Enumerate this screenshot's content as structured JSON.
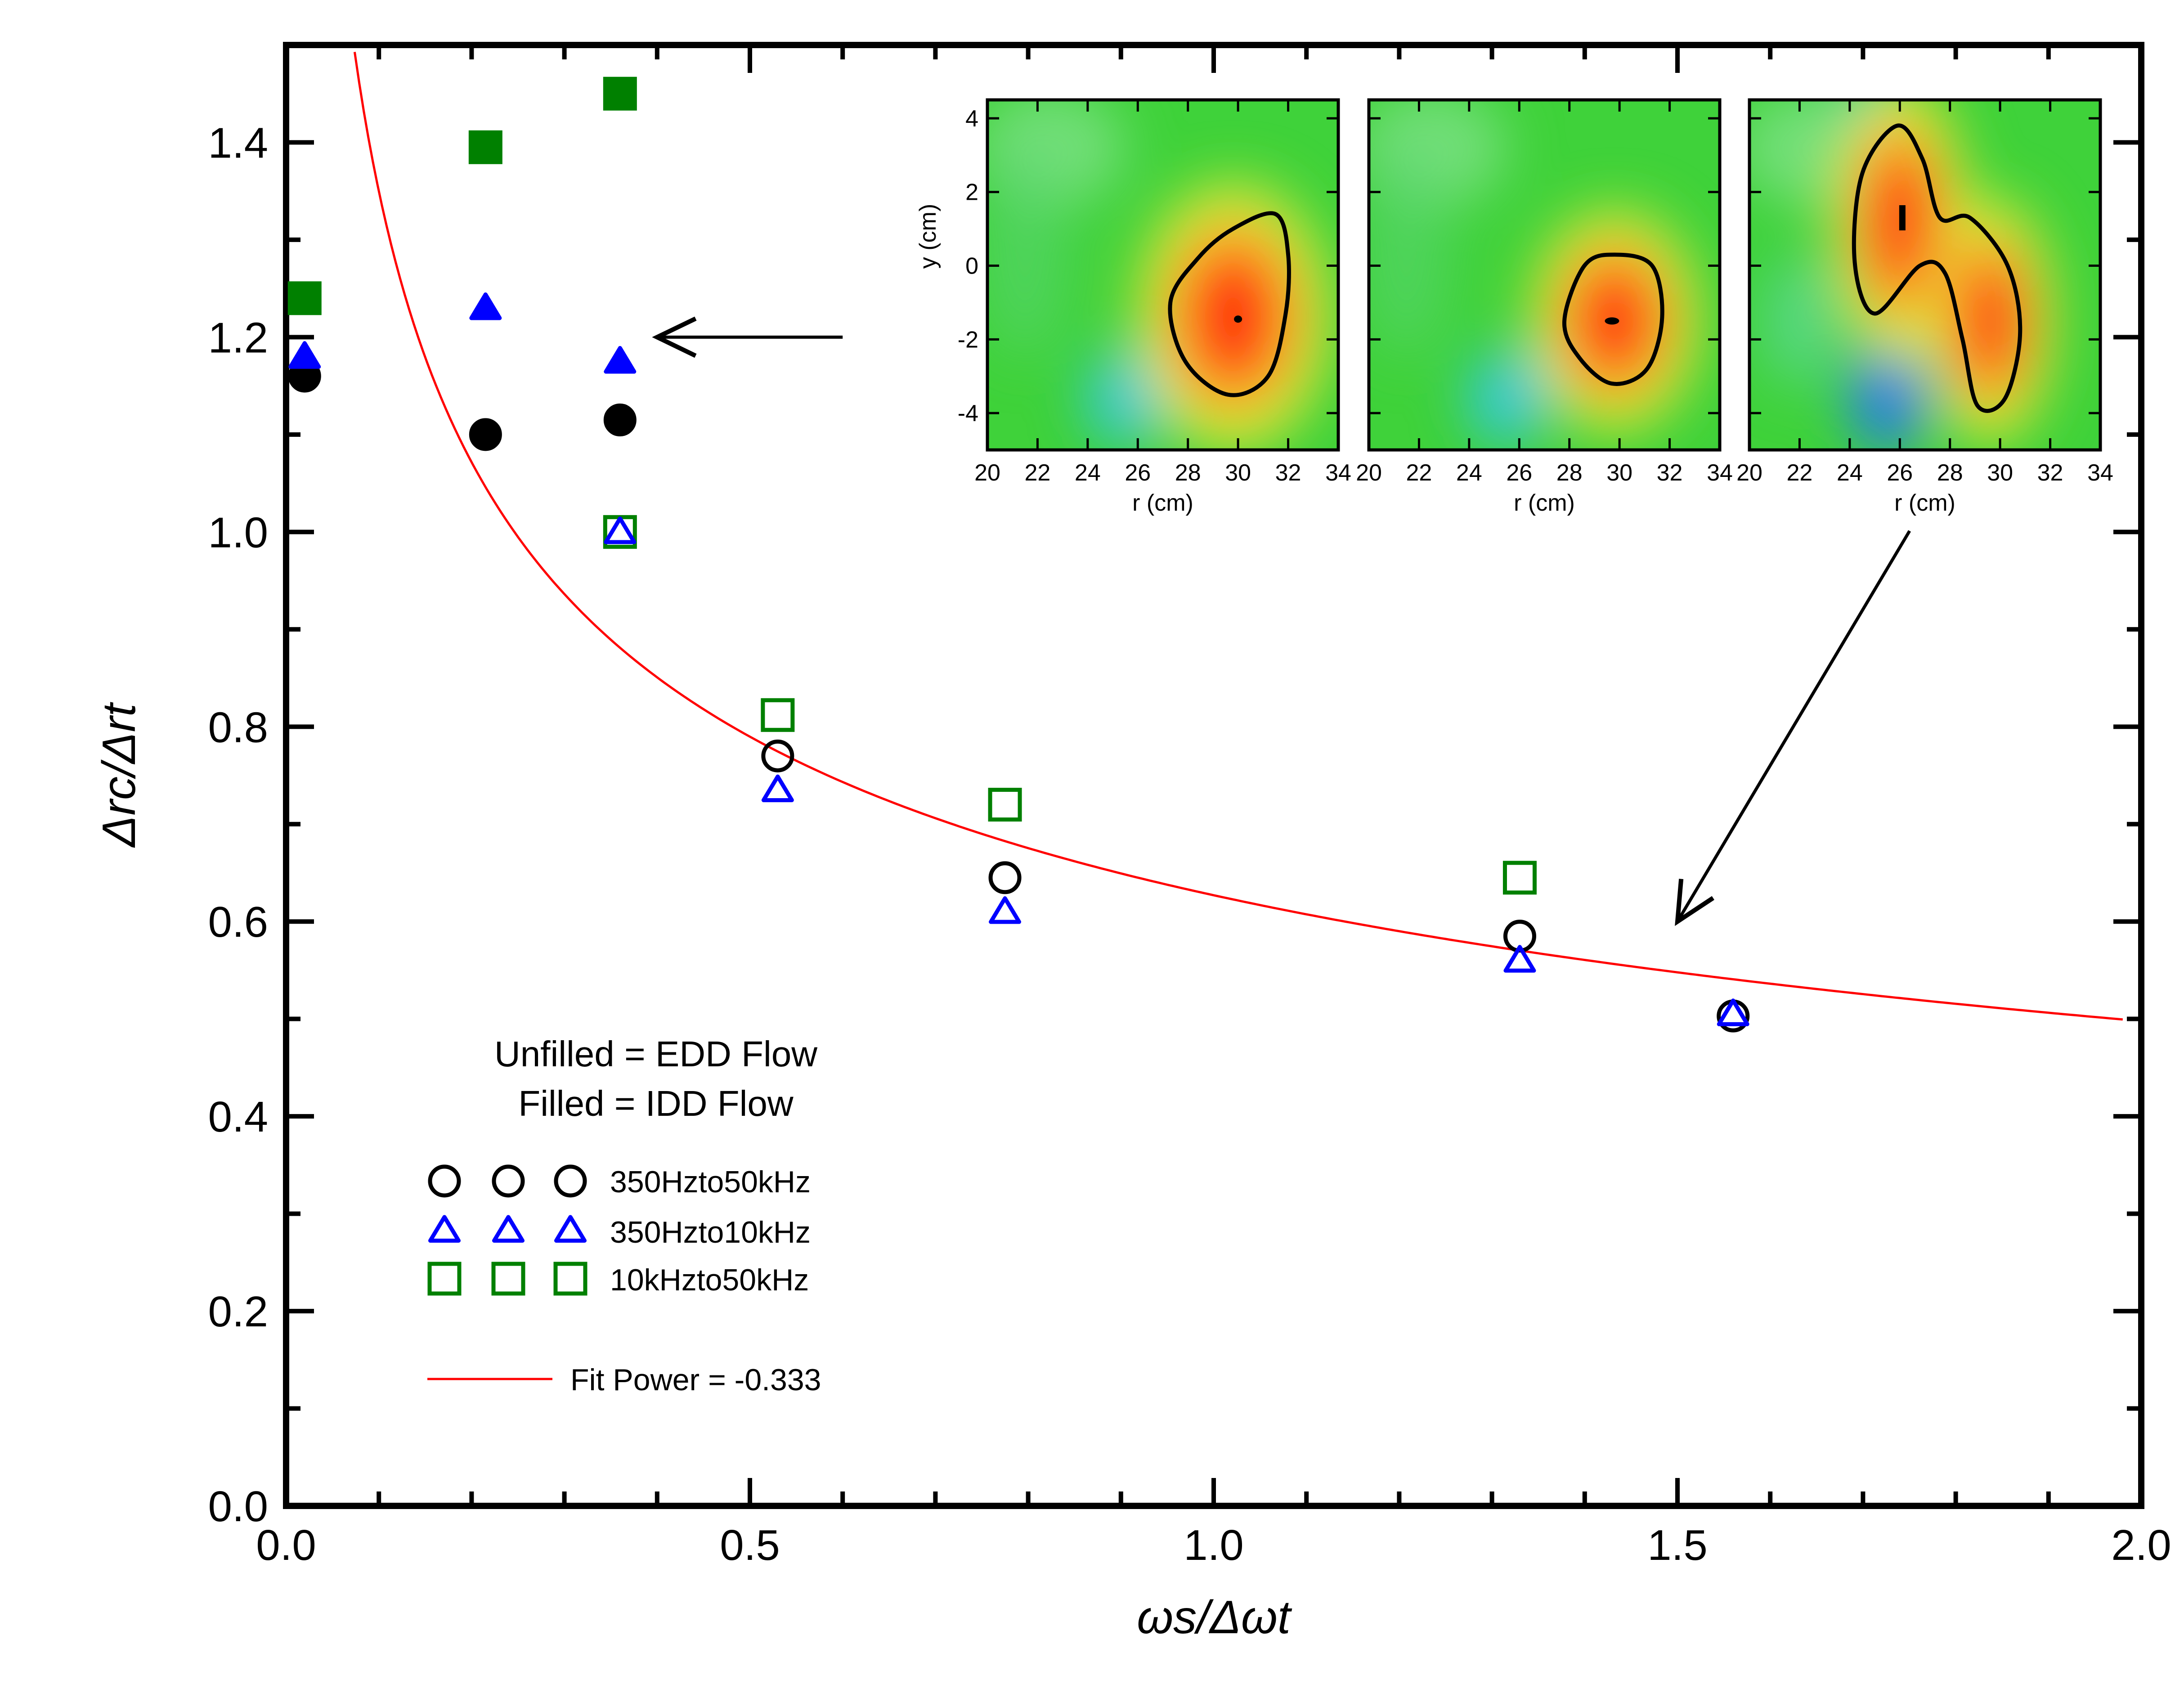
{
  "chart_data": {
    "type": "scatter",
    "xlabel": "ωs/Δωt",
    "ylabel": "Δrc/Δrt",
    "xlim": [
      0.0,
      2.0
    ],
    "ylim": [
      0.0,
      1.5
    ],
    "x_ticks": [
      "0.0",
      "0.5",
      "1.0",
      "1.5",
      "2.0"
    ],
    "y_ticks": [
      "0.0",
      "0.2",
      "0.4",
      "0.6",
      "0.8",
      "1.0",
      "1.2",
      "1.4"
    ],
    "legend_note": [
      "Unfilled = EDD Flow",
      "Filled = IDD Flow"
    ],
    "series": [
      {
        "name": "350Hzto50kHz",
        "marker": "circle",
        "color": "#000000",
        "unfilled": [
          {
            "x": 0.53,
            "y": 0.77
          },
          {
            "x": 0.775,
            "y": 0.645
          },
          {
            "x": 1.33,
            "y": 0.585
          },
          {
            "x": 1.56,
            "y": 0.503
          }
        ],
        "filled": [
          {
            "x": 0.02,
            "y": 1.16
          },
          {
            "x": 0.215,
            "y": 1.1
          },
          {
            "x": 0.36,
            "y": 1.115
          }
        ]
      },
      {
        "name": "350Hzto10kHz",
        "marker": "triangle",
        "color": "#0000ff",
        "unfilled": [
          {
            "x": 0.36,
            "y": 1.0
          },
          {
            "x": 0.53,
            "y": 0.735
          },
          {
            "x": 0.775,
            "y": 0.61
          },
          {
            "x": 1.33,
            "y": 0.56
          },
          {
            "x": 1.56,
            "y": 0.505
          }
        ],
        "filled": [
          {
            "x": 0.02,
            "y": 1.18
          },
          {
            "x": 0.215,
            "y": 1.23
          },
          {
            "x": 0.36,
            "y": 1.175
          }
        ]
      },
      {
        "name": "10kHzto50kHz",
        "marker": "square",
        "color": "#008000",
        "unfilled": [
          {
            "x": 0.36,
            "y": 1.0
          },
          {
            "x": 0.53,
            "y": 0.812
          },
          {
            "x": 0.775,
            "y": 0.72
          },
          {
            "x": 1.33,
            "y": 0.645
          }
        ],
        "filled": [
          {
            "x": 0.02,
            "y": 1.24
          },
          {
            "x": 0.215,
            "y": 1.395
          },
          {
            "x": 0.36,
            "y": 1.45
          }
        ]
      }
    ],
    "fit": {
      "label": "Fit Power = -0.333",
      "power": -0.333,
      "coef": 0.627,
      "color": "#ff0000",
      "x_range": [
        0.02,
        1.98
      ]
    },
    "inset": {
      "ylabel": "y (cm)",
      "xlabel": "r (cm)",
      "x_ticks": [
        "20",
        "22",
        "24",
        "26",
        "28",
        "30",
        "32",
        "34"
      ],
      "y_ticks": [
        "4",
        "2",
        "0",
        "-2",
        "-4"
      ],
      "xlim": [
        20,
        34
      ],
      "ylim": [
        -5,
        4.5
      ],
      "panels": [
        {
          "blobs": [
            {
              "x": 29.8,
              "y": -1.4,
              "rx": 2.3,
              "ry": 2.3
            }
          ],
          "contour": [
            [
              28.4,
              0.2
            ],
            [
              29.8,
              1.0
            ],
            [
              31.5,
              1.4
            ],
            [
              32.0,
              0.3
            ],
            [
              31.9,
              -1.3
            ],
            [
              31.2,
              -3.0
            ],
            [
              29.6,
              -3.5
            ],
            [
              27.9,
              -2.6
            ],
            [
              27.3,
              -1.0
            ]
          ],
          "peak": {
            "x": 30.0,
            "y": -1.45
          }
        },
        {
          "blobs": [
            {
              "x": 29.8,
              "y": -1.5,
              "rx": 2.0,
              "ry": 1.9
            }
          ],
          "contour": [
            [
              28.6,
              0.0
            ],
            [
              29.8,
              0.3
            ],
            [
              31.3,
              0.0
            ],
            [
              31.7,
              -1.4
            ],
            [
              31.1,
              -2.8
            ],
            [
              29.7,
              -3.2
            ],
            [
              28.4,
              -2.5
            ],
            [
              27.8,
              -1.5
            ]
          ],
          "peak": {
            "x": 29.7,
            "y": -1.5
          }
        },
        {
          "blobs": [
            {
              "x": 26.0,
              "y": 1.2,
              "rx": 1.6,
              "ry": 2.4
            },
            {
              "x": 29.6,
              "y": -1.5,
              "rx": 1.5,
              "ry": 2.1
            }
          ],
          "contour": [
            [
              25.9,
              3.8
            ],
            [
              26.9,
              2.9
            ],
            [
              27.6,
              1.3
            ],
            [
              28.8,
              1.3
            ],
            [
              30.3,
              0.0
            ],
            [
              30.8,
              -1.8
            ],
            [
              30.2,
              -3.6
            ],
            [
              29.1,
              -3.8
            ],
            [
              28.5,
              -2.0
            ],
            [
              27.8,
              -0.2
            ],
            [
              26.8,
              0.0
            ],
            [
              25.0,
              -1.3
            ],
            [
              24.2,
              0.1
            ],
            [
              24.5,
              2.5
            ]
          ],
          "peak": {
            "x": 26.1,
            "y": 1.3
          }
        }
      ]
    },
    "annotations": [
      {
        "type": "arrow",
        "from": {
          "x": 0.6,
          "y": 1.2
        },
        "to": {
          "x": 0.4,
          "y": 1.2
        }
      },
      {
        "type": "arrow",
        "from": "inset-panel-3",
        "to": {
          "x": 1.5,
          "y": 0.6
        }
      }
    ]
  }
}
